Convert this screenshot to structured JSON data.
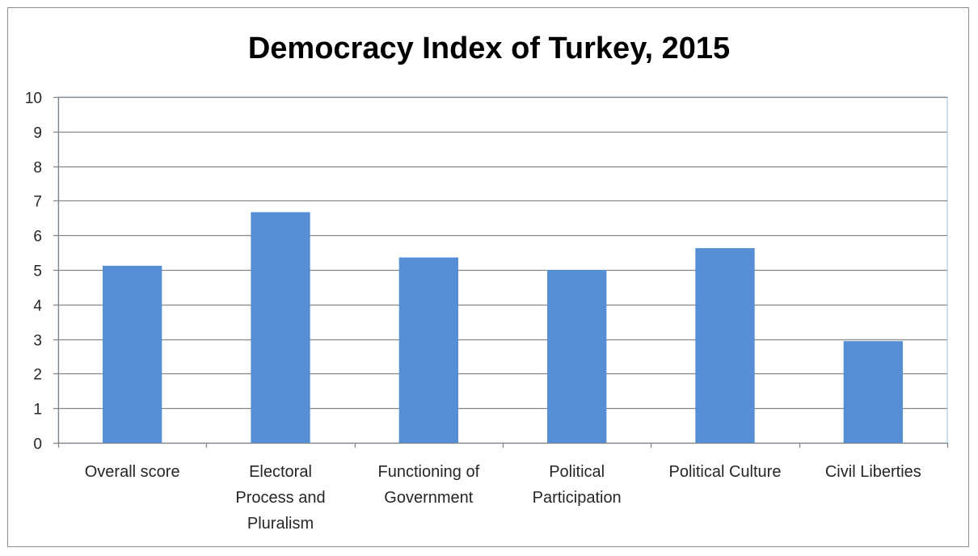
{
  "chart_data": {
    "type": "bar",
    "title": "Democracy Index of Turkey, 2015",
    "categories": [
      "Overall score",
      "Electoral Process and Pluralism",
      "Functioning of Government",
      "Political Participation",
      "Political Culture",
      "Civil Liberties"
    ],
    "category_lines": [
      [
        "Overall score"
      ],
      [
        "Electoral",
        "Process and",
        "Pluralism"
      ],
      [
        "Functioning of",
        "Government"
      ],
      [
        "Political",
        "Participation"
      ],
      [
        "Political Culture"
      ],
      [
        "Civil Liberties"
      ]
    ],
    "values": [
      5.12,
      6.67,
      5.36,
      5.0,
      5.63,
      2.94
    ],
    "xlabel": "",
    "ylabel": "",
    "ylim": [
      0,
      10
    ],
    "yticks": [
      0,
      1,
      2,
      3,
      4,
      5,
      6,
      7,
      8,
      9,
      10
    ],
    "grid": true,
    "legend": "none",
    "bar_color": "#558ed5",
    "gridline_color": "#868686",
    "axis_color": "#868686",
    "plot_border_color": "#9dc3e6"
  }
}
